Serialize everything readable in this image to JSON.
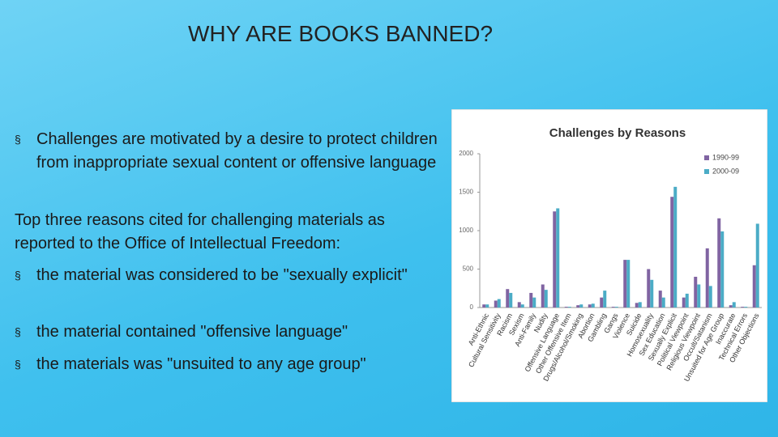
{
  "title": "WHY ARE BOOKS BANNED?",
  "bullets": [
    "Challenges are motivated by a desire to protect children from inappropriate sexual content or offensive language"
  ],
  "paragraph": "Top three reasons cited for challenging materials as reported to the Office of Intellectual Freedom:",
  "sub_bullets": [
    "the material was considered to be \"sexually explicit\"",
    "the material contained \"offensive language\"",
    "the materials was \"unsuited to any age group\""
  ],
  "chart_data": {
    "type": "bar",
    "title": "Challenges by Reasons",
    "categories": [
      "Anti-Ethnic",
      "Cultural Sensitivity",
      "Racism",
      "Sexism",
      "Anti-Family",
      "Nudity",
      "Offensive Language",
      "Other Offensive Item",
      "Drugs/Alcohol/Smoking",
      "Abortion",
      "Gambling",
      "Gangs",
      "Violence",
      "Suicide",
      "Homosexuality",
      "Sex Education",
      "Sexually Explicit",
      "Political Viewpoint",
      "Religious Viewpoint",
      "Occult/Satanism",
      "Unsuited for Age Group",
      "Inaccurate",
      "Technical Errors",
      "Other Objections"
    ],
    "series": [
      {
        "name": "1990-99",
        "color": "#8064a2",
        "values": [
          40,
          90,
          240,
          70,
          190,
          300,
          1250,
          10,
          30,
          40,
          130,
          10,
          620,
          60,
          500,
          220,
          1440,
          130,
          400,
          770,
          1160,
          30,
          10,
          550
        ]
      },
      {
        "name": "2000-09",
        "color": "#4bacc6",
        "values": [
          40,
          110,
          190,
          40,
          130,
          230,
          1290,
          10,
          40,
          50,
          220,
          10,
          620,
          70,
          360,
          130,
          1570,
          180,
          300,
          280,
          990,
          70,
          10,
          1090
        ]
      }
    ],
    "ylim": [
      0,
      2000
    ],
    "yticks": [
      0,
      500,
      1000,
      1500,
      2000
    ],
    "legend": "top-right"
  }
}
